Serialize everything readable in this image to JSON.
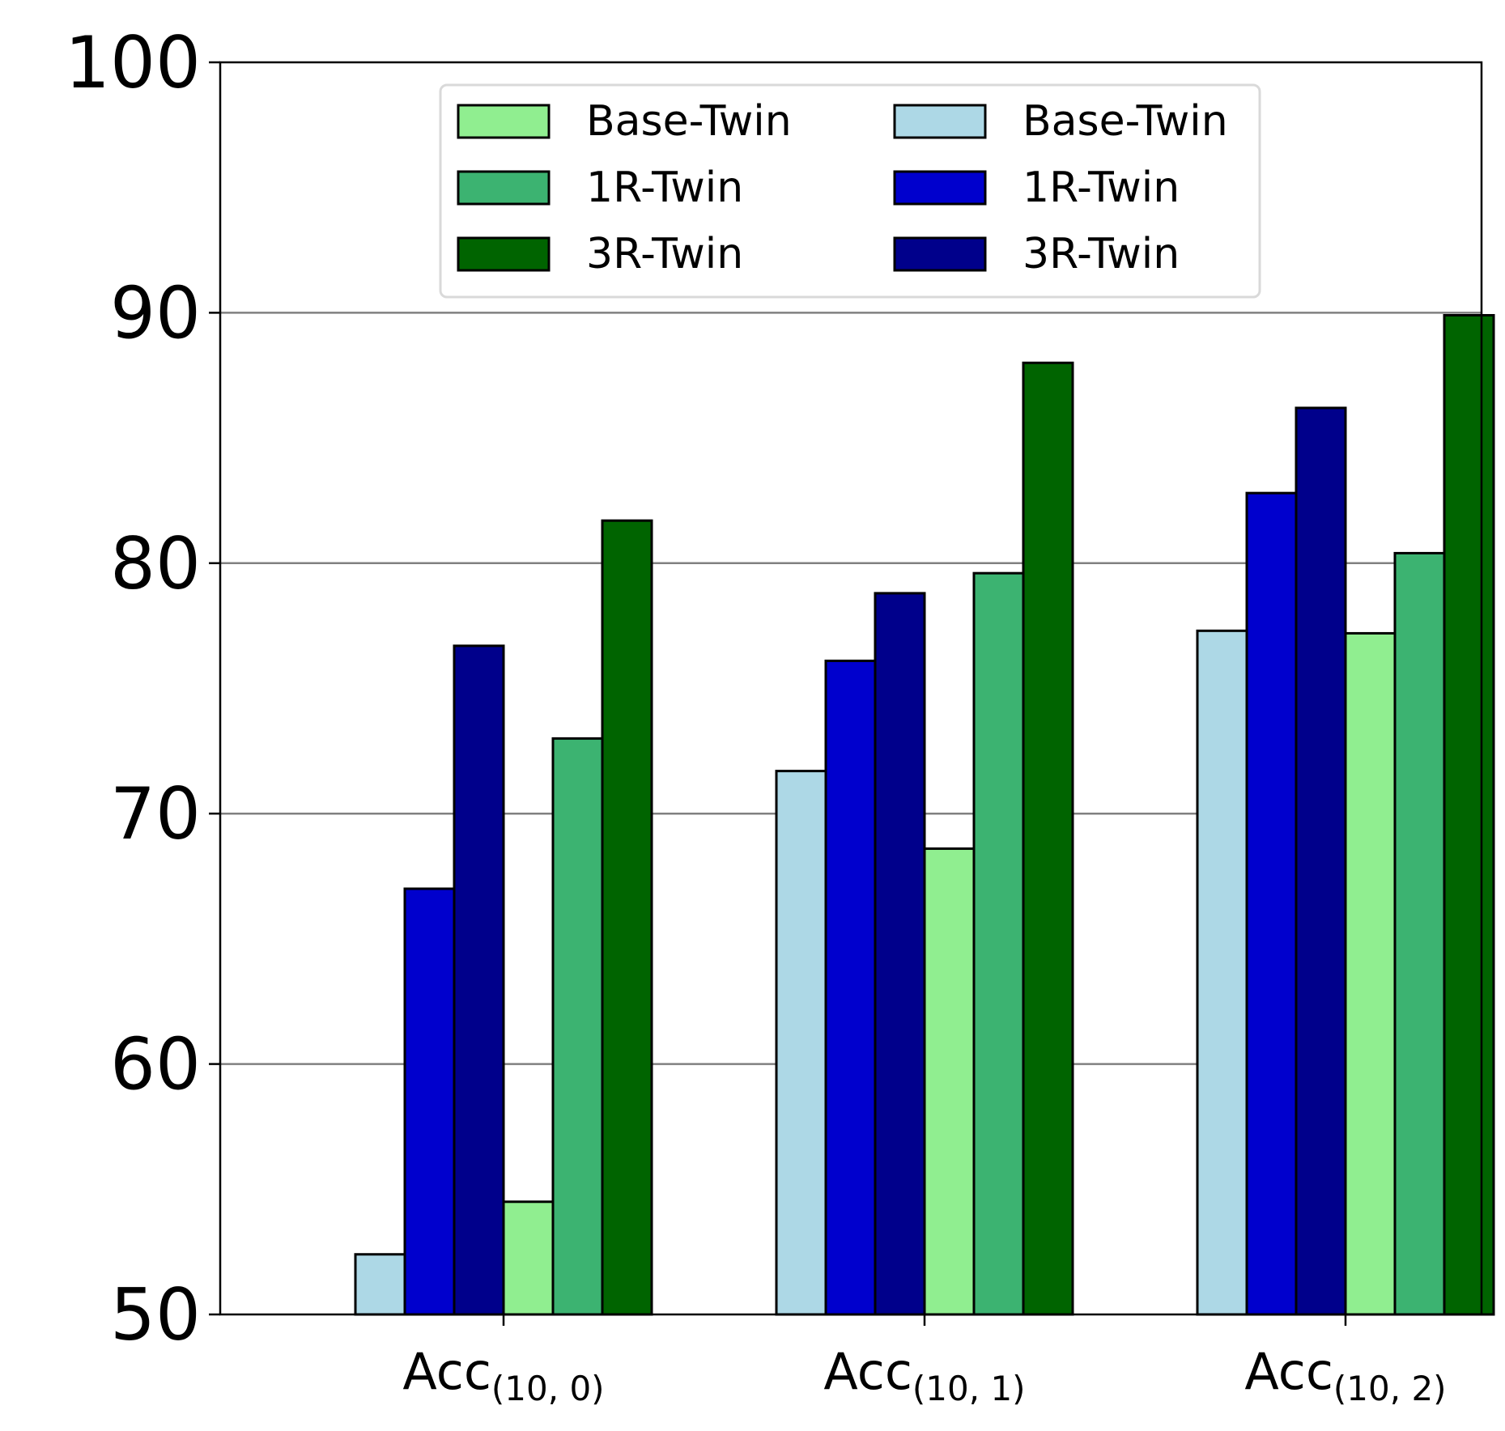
{
  "chart_data": {
    "type": "bar",
    "title": "",
    "xlabel": "",
    "ylabel": "",
    "ylim": [
      50,
      100
    ],
    "yticks": [
      50,
      60,
      70,
      80,
      90,
      100
    ],
    "grid": "y",
    "legend_position": "top-center",
    "categories": [
      {
        "base": "Acc",
        "sub": "(10, 0)"
      },
      {
        "base": "Acc",
        "sub": "(10, 1)"
      },
      {
        "base": "Acc",
        "sub": "(10, 2)"
      }
    ],
    "series": [
      {
        "name": "Base-Twin",
        "color": "#add8e6",
        "values": [
          52.4,
          71.7,
          77.3
        ]
      },
      {
        "name": "1R-Twin",
        "color": "#0000cd",
        "values": [
          67.0,
          76.1,
          82.8
        ]
      },
      {
        "name": "3R-Twin",
        "color": "#00008b",
        "values": [
          76.7,
          78.8,
          86.2
        ]
      },
      {
        "name": "Base-Twin",
        "color": "#90ee90",
        "values": [
          54.5,
          68.6,
          77.2
        ]
      },
      {
        "name": "1R-Twin",
        "color": "#3cb371",
        "values": [
          73.0,
          79.6,
          80.4
        ]
      },
      {
        "name": "3R-Twin",
        "color": "#006400",
        "values": [
          81.7,
          88.0,
          89.9
        ]
      }
    ],
    "legend_order": [
      3,
      4,
      5,
      0,
      1,
      2
    ]
  }
}
